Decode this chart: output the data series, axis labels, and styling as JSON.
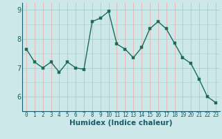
{
  "x": [
    0,
    1,
    2,
    3,
    4,
    5,
    6,
    7,
    8,
    9,
    10,
    11,
    12,
    13,
    14,
    15,
    16,
    17,
    18,
    19,
    20,
    21,
    22,
    23
  ],
  "y": [
    7.65,
    7.2,
    7.0,
    7.2,
    6.85,
    7.2,
    7.0,
    6.95,
    8.6,
    8.72,
    8.95,
    7.82,
    7.65,
    7.35,
    7.7,
    8.35,
    8.6,
    8.35,
    7.85,
    7.35,
    7.15,
    6.6,
    6.0,
    5.8
  ],
  "line_color": "#1a6b5a",
  "marker_color": "#1a6b5a",
  "bg_color": "#cce8e8",
  "grid_color_v": "#e8b0b0",
  "grid_color_h": "#a8d0d0",
  "xlabel": "Humidex (Indice chaleur)",
  "ylim": [
    5.5,
    9.25
  ],
  "xlim": [
    -0.5,
    23.5
  ],
  "yticks": [
    6,
    7,
    8,
    9
  ],
  "xticks": [
    0,
    1,
    2,
    3,
    4,
    5,
    6,
    7,
    8,
    9,
    10,
    11,
    12,
    13,
    14,
    15,
    16,
    17,
    18,
    19,
    20,
    21,
    22,
    23
  ],
  "label_color": "#1a5a6a",
  "tick_color": "#1a5a6a",
  "font_size_xlabel": 7.5,
  "font_size_xticks": 5.5,
  "font_size_yticks": 7,
  "marker_size": 2.5,
  "line_width": 1.0
}
